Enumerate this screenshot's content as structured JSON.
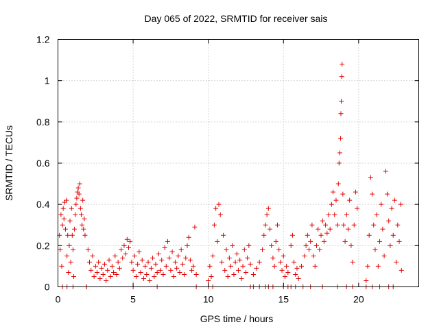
{
  "chart_data": {
    "type": "scatter",
    "title": "Day 065 of 2022, SRMTID for receiver sais",
    "xlabel": "GPS time / hours",
    "ylabel": "SRMTID / TECUs",
    "xlim": [
      0,
      24
    ],
    "ylim": [
      0,
      1.2
    ],
    "x_ticks": [
      0,
      5,
      10,
      15,
      20
    ],
    "x_tick_labels": [
      "0",
      "5",
      "10",
      "15",
      "20"
    ],
    "y_ticks": [
      0,
      0.2,
      0.4,
      0.6,
      0.8,
      1.0,
      1.2
    ],
    "y_tick_labels": [
      "0",
      "0.2",
      "0.4",
      "0.6",
      "0.8",
      "1",
      "1.2"
    ],
    "grid": true,
    "marker": "+",
    "color": "#e00000",
    "series": [
      {
        "name": "SRMTID",
        "points": [
          [
            0.1,
            0.25
          ],
          [
            0.15,
            0.18
          ],
          [
            0.2,
            0.35
          ],
          [
            0.25,
            0.1
          ],
          [
            0.3,
            0.3
          ],
          [
            0.35,
            0.38
          ],
          [
            0.4,
            0.33
          ],
          [
            0.45,
            0.41
          ],
          [
            0.5,
            0.28
          ],
          [
            0.55,
            0.42
          ],
          [
            0.6,
            0.15
          ],
          [
            0.65,
            0.25
          ],
          [
            0.7,
            0.07
          ],
          [
            0.75,
            0.2
          ],
          [
            0.8,
            0.32
          ],
          [
            0.85,
            0.12
          ],
          [
            0.9,
            0.38
          ],
          [
            0.95,
            0.25
          ],
          [
            1.0,
            0.18
          ],
          [
            1.05,
            0.05
          ],
          [
            1.1,
            0.28
          ],
          [
            1.15,
            0.35
          ],
          [
            1.2,
            0.4
          ],
          [
            1.25,
            0.43
          ],
          [
            1.3,
            0.46
          ],
          [
            1.35,
            0.48
          ],
          [
            1.4,
            0.45
          ],
          [
            1.45,
            0.5
          ],
          [
            1.5,
            0.38
          ],
          [
            1.55,
            0.35
          ],
          [
            1.6,
            0.3
          ],
          [
            1.65,
            0.42
          ],
          [
            1.7,
            0.28
          ],
          [
            1.75,
            0.33
          ],
          [
            1.8,
            0.25
          ],
          [
            1.9,
            0.0
          ],
          [
            2.0,
            0.18
          ],
          [
            2.1,
            0.12
          ],
          [
            2.2,
            0.08
          ],
          [
            2.3,
            0.15
          ],
          [
            2.4,
            0.05
          ],
          [
            2.5,
            0.1
          ],
          [
            2.6,
            0.07
          ],
          [
            2.7,
            0.12
          ],
          [
            2.8,
            0.04
          ],
          [
            2.9,
            0.09
          ],
          [
            3.0,
            0.06
          ],
          [
            3.1,
            0.11
          ],
          [
            3.2,
            0.03
          ],
          [
            3.3,
            0.08
          ],
          [
            3.4,
            0.13
          ],
          [
            3.5,
            0.05
          ],
          [
            3.6,
            0.1
          ],
          [
            3.7,
            0.07
          ],
          [
            3.8,
            0.15
          ],
          [
            3.9,
            0.06
          ],
          [
            4.0,
            0.12
          ],
          [
            4.1,
            0.09
          ],
          [
            4.2,
            0.18
          ],
          [
            4.3,
            0.14
          ],
          [
            4.4,
            0.2
          ],
          [
            4.5,
            0.16
          ],
          [
            4.6,
            0.23
          ],
          [
            4.7,
            0.19
          ],
          [
            4.8,
            0.22
          ],
          [
            4.9,
            0.12
          ],
          [
            5.0,
            0.08
          ],
          [
            5.1,
            0.15
          ],
          [
            5.2,
            0.05
          ],
          [
            5.3,
            0.11
          ],
          [
            5.4,
            0.17
          ],
          [
            5.5,
            0.07
          ],
          [
            5.6,
            0.13
          ],
          [
            5.7,
            0.04
          ],
          [
            5.8,
            0.1
          ],
          [
            5.9,
            0.06
          ],
          [
            6.0,
            0.12
          ],
          [
            6.1,
            0.03
          ],
          [
            6.2,
            0.09
          ],
          [
            6.3,
            0.14
          ],
          [
            6.4,
            0.05
          ],
          [
            6.5,
            0.11
          ],
          [
            6.6,
            0.07
          ],
          [
            6.7,
            0.16
          ],
          [
            6.8,
            0.08
          ],
          [
            6.9,
            0.13
          ],
          [
            7.0,
            0.06
          ],
          [
            7.1,
            0.19
          ],
          [
            7.2,
            0.1
          ],
          [
            7.3,
            0.22
          ],
          [
            7.4,
            0.14
          ],
          [
            7.5,
            0.08
          ],
          [
            7.6,
            0.17
          ],
          [
            7.7,
            0.05
          ],
          [
            7.8,
            0.12
          ],
          [
            7.9,
            0.09
          ],
          [
            8.0,
            0.15
          ],
          [
            8.1,
            0.07
          ],
          [
            8.2,
            0.18
          ],
          [
            8.3,
            0.11
          ],
          [
            8.4,
            0.06
          ],
          [
            8.5,
            0.14
          ],
          [
            8.6,
            0.2
          ],
          [
            8.7,
            0.24
          ],
          [
            8.8,
            0.13
          ],
          [
            8.9,
            0.08
          ],
          [
            9.0,
            0.1
          ],
          [
            9.1,
            0.29
          ],
          [
            9.2,
            0.06
          ],
          [
            10.0,
            0.03
          ],
          [
            10.1,
            0.1
          ],
          [
            10.2,
            0.05
          ],
          [
            10.3,
            0.15
          ],
          [
            10.4,
            0.3
          ],
          [
            10.5,
            0.38
          ],
          [
            10.6,
            0.22
          ],
          [
            10.7,
            0.4
          ],
          [
            10.8,
            0.35
          ],
          [
            10.9,
            0.12
          ],
          [
            11.0,
            0.25
          ],
          [
            11.1,
            0.08
          ],
          [
            11.2,
            0.18
          ],
          [
            11.3,
            0.05
          ],
          [
            11.4,
            0.14
          ],
          [
            11.5,
            0.1
          ],
          [
            11.6,
            0.2
          ],
          [
            11.7,
            0.06
          ],
          [
            11.8,
            0.12
          ],
          [
            11.9,
            0.16
          ],
          [
            12.0,
            0.08
          ],
          [
            12.1,
            0.13
          ],
          [
            12.2,
            0.04
          ],
          [
            12.3,
            0.1
          ],
          [
            12.4,
            0.18
          ],
          [
            12.5,
            0.07
          ],
          [
            12.6,
            0.14
          ],
          [
            12.7,
            0.2
          ],
          [
            12.8,
            0.11
          ],
          [
            13.0,
            0.06
          ],
          [
            13.2,
            0.09
          ],
          [
            13.4,
            0.12
          ],
          [
            13.6,
            0.18
          ],
          [
            13.7,
            0.25
          ],
          [
            13.8,
            0.3
          ],
          [
            13.9,
            0.35
          ],
          [
            14.0,
            0.38
          ],
          [
            14.1,
            0.28
          ],
          [
            14.2,
            0.2
          ],
          [
            14.3,
            0.14
          ],
          [
            14.4,
            0.1
          ],
          [
            14.5,
            0.22
          ],
          [
            14.6,
            0.3
          ],
          [
            14.7,
            0.18
          ],
          [
            14.8,
            0.12
          ],
          [
            14.9,
            0.08
          ],
          [
            15.0,
            0.15
          ],
          [
            15.1,
            0.05
          ],
          [
            15.2,
            0.1
          ],
          [
            15.3,
            0.07
          ],
          [
            15.5,
            0.2
          ],
          [
            15.6,
            0.25
          ],
          [
            15.7,
            0.12
          ],
          [
            15.8,
            0.06
          ],
          [
            15.9,
            0.09
          ],
          [
            16.0,
            0.04
          ],
          [
            16.2,
            0.1
          ],
          [
            16.4,
            0.15
          ],
          [
            16.5,
            0.2
          ],
          [
            16.6,
            0.25
          ],
          [
            16.7,
            0.18
          ],
          [
            16.8,
            0.22
          ],
          [
            16.9,
            0.3
          ],
          [
            17.0,
            0.15
          ],
          [
            17.1,
            0.1
          ],
          [
            17.2,
            0.2
          ],
          [
            17.3,
            0.28
          ],
          [
            17.4,
            0.18
          ],
          [
            17.5,
            0.25
          ],
          [
            17.6,
            0.32
          ],
          [
            17.7,
            0.22
          ],
          [
            17.8,
            0.3
          ],
          [
            17.9,
            0.26
          ],
          [
            18.0,
            0.35
          ],
          [
            18.1,
            0.28
          ],
          [
            18.2,
            0.4
          ],
          [
            18.3,
            0.46
          ],
          [
            18.4,
            0.35
          ],
          [
            18.5,
            0.42
          ],
          [
            18.6,
            0.3
          ],
          [
            18.65,
            0.5
          ],
          [
            18.7,
            0.6
          ],
          [
            18.75,
            0.65
          ],
          [
            18.8,
            0.72
          ],
          [
            18.82,
            0.84
          ],
          [
            18.85,
            0.9
          ],
          [
            18.88,
            1.02
          ],
          [
            18.9,
            1.08
          ],
          [
            18.95,
            0.45
          ],
          [
            19.0,
            0.3
          ],
          [
            19.1,
            0.22
          ],
          [
            19.2,
            0.35
          ],
          [
            19.3,
            0.28
          ],
          [
            19.4,
            0.42
          ],
          [
            19.5,
            0.2
          ],
          [
            19.6,
            0.12
          ],
          [
            19.7,
            0.3
          ],
          [
            19.8,
            0.46
          ],
          [
            19.9,
            0.38
          ],
          [
            20.5,
            0.03
          ],
          [
            20.6,
            0.1
          ],
          [
            20.7,
            0.25
          ],
          [
            20.8,
            0.53
          ],
          [
            20.9,
            0.45
          ],
          [
            21.0,
            0.3
          ],
          [
            21.1,
            0.18
          ],
          [
            21.2,
            0.35
          ],
          [
            21.3,
            0.1
          ],
          [
            21.4,
            0.22
          ],
          [
            21.5,
            0.4
          ],
          [
            21.6,
            0.28
          ],
          [
            21.7,
            0.15
          ],
          [
            21.8,
            0.56
          ],
          [
            21.9,
            0.45
          ],
          [
            22.0,
            0.32
          ],
          [
            22.1,
            0.2
          ],
          [
            22.2,
            0.38
          ],
          [
            22.3,
            0.25
          ],
          [
            22.4,
            0.42
          ],
          [
            22.5,
            0.12
          ],
          [
            22.6,
            0.3
          ],
          [
            22.7,
            0.22
          ],
          [
            22.8,
            0.4
          ],
          [
            22.85,
            0.08
          ]
        ],
        "zero_points": [
          0.3,
          0.6,
          1.0,
          1.9,
          5.0,
          6.6,
          9.2,
          10.0,
          10.3,
          12.8,
          13.0,
          13.4,
          13.8,
          14.0,
          14.3,
          15.0,
          15.3,
          15.5,
          15.8,
          16.3,
          16.8,
          17.6,
          18.6,
          19.2,
          19.6,
          20.5,
          20.9,
          21.4,
          22.0,
          22.3
        ]
      }
    ]
  }
}
